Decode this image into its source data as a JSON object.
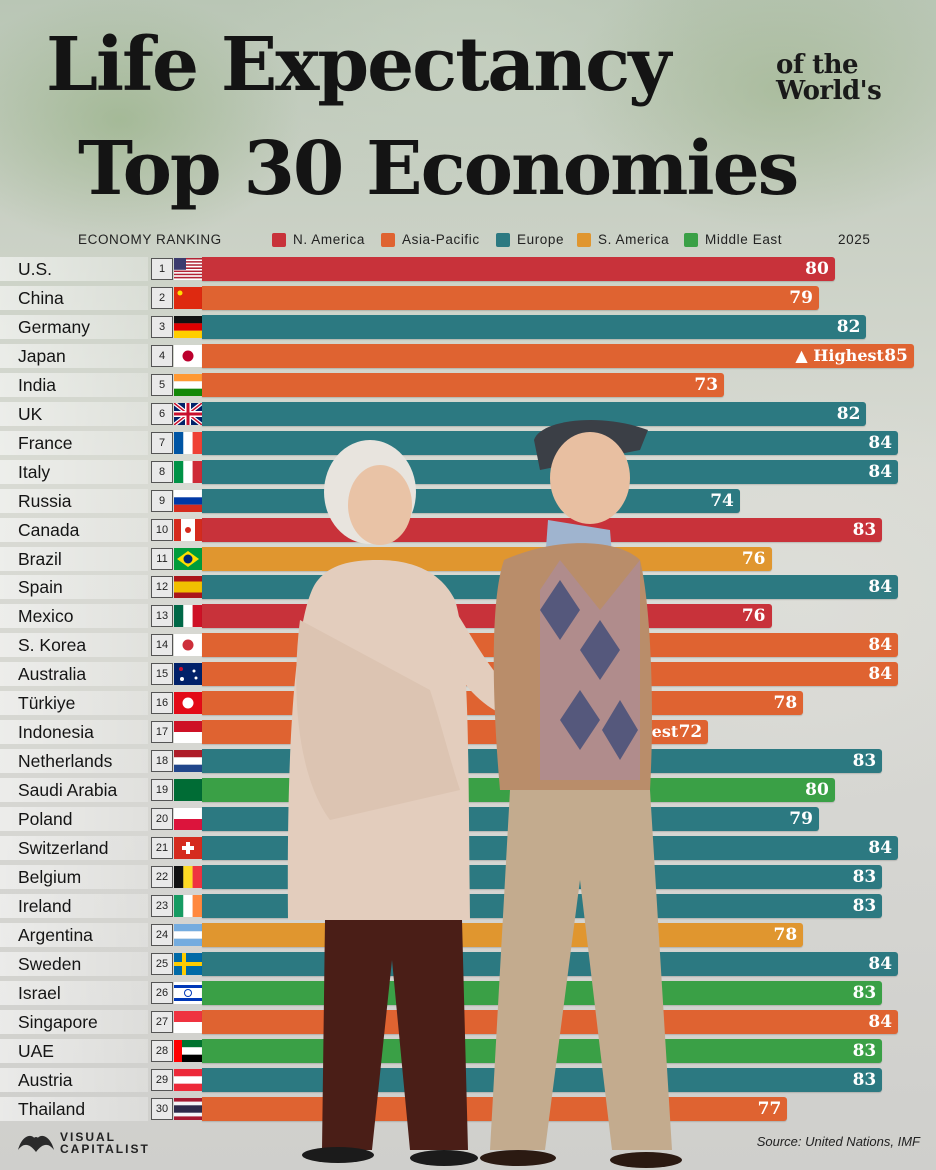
{
  "title": {
    "line1": "Life Expectancy",
    "side_top": "of the",
    "side_bottom": "World's",
    "line2": "Top 30 Economies"
  },
  "legend": {
    "ranking_label": "ECONOMY RANKING",
    "year": "2025",
    "regions": [
      {
        "name": "N. America",
        "color": "#c8323a"
      },
      {
        "name": "Asia-Pacific",
        "color": "#df6331"
      },
      {
        "name": "Europe",
        "color": "#2c7981"
      },
      {
        "name": "S. America",
        "color": "#e0962f"
      },
      {
        "name": "Middle East",
        "color": "#3aa046"
      }
    ]
  },
  "chart_data": {
    "type": "bar",
    "orientation": "horizontal",
    "categories": [
      "U.S.",
      "China",
      "Germany",
      "Japan",
      "India",
      "UK",
      "France",
      "Italy",
      "Russia",
      "Canada",
      "Brazil",
      "Spain",
      "Mexico",
      "S. Korea",
      "Australia",
      "Türkiye",
      "Indonesia",
      "Netherlands",
      "Saudi Arabia",
      "Poland",
      "Switzerland",
      "Belgium",
      "Ireland",
      "Argentina",
      "Sweden",
      "Israel",
      "Singapore",
      "UAE",
      "Austria",
      "Thailand"
    ],
    "ranks": [
      "1",
      "2",
      "3",
      "4",
      "5",
      "6",
      "7",
      "8",
      "9",
      "10",
      "11",
      "12",
      "13",
      "14",
      "15",
      "16",
      "17",
      "18",
      "19",
      "20",
      "21",
      "22",
      "23",
      "24",
      "25",
      "26",
      "27",
      "28",
      "29",
      "30"
    ],
    "values": [
      80,
      79,
      82,
      85,
      73,
      82,
      84,
      84,
      74,
      83,
      76,
      84,
      76,
      84,
      84,
      78,
      72,
      83,
      80,
      79,
      84,
      83,
      83,
      78,
      84,
      83,
      84,
      83,
      83,
      77
    ],
    "regions": [
      "N. America",
      "Asia-Pacific",
      "Europe",
      "Asia-Pacific",
      "Asia-Pacific",
      "Europe",
      "Europe",
      "Europe",
      "Europe",
      "N. America",
      "S. America",
      "Europe",
      "N. America",
      "Asia-Pacific",
      "Asia-Pacific",
      "Asia-Pacific",
      "Asia-Pacific",
      "Europe",
      "Middle East",
      "Europe",
      "Europe",
      "Europe",
      "Europe",
      "S. America",
      "Europe",
      "Middle East",
      "Asia-Pacific",
      "Middle East",
      "Europe",
      "Asia-Pacific"
    ],
    "highlights": [
      {
        "index": 3,
        "label": "▲ Highest"
      },
      {
        "index": 16,
        "label": "▼ Lowest"
      }
    ]
  },
  "footer": {
    "logo_line1": "VISUAL",
    "logo_line2": "CAPITALIST",
    "source": "Source: United Nations, IMF"
  }
}
